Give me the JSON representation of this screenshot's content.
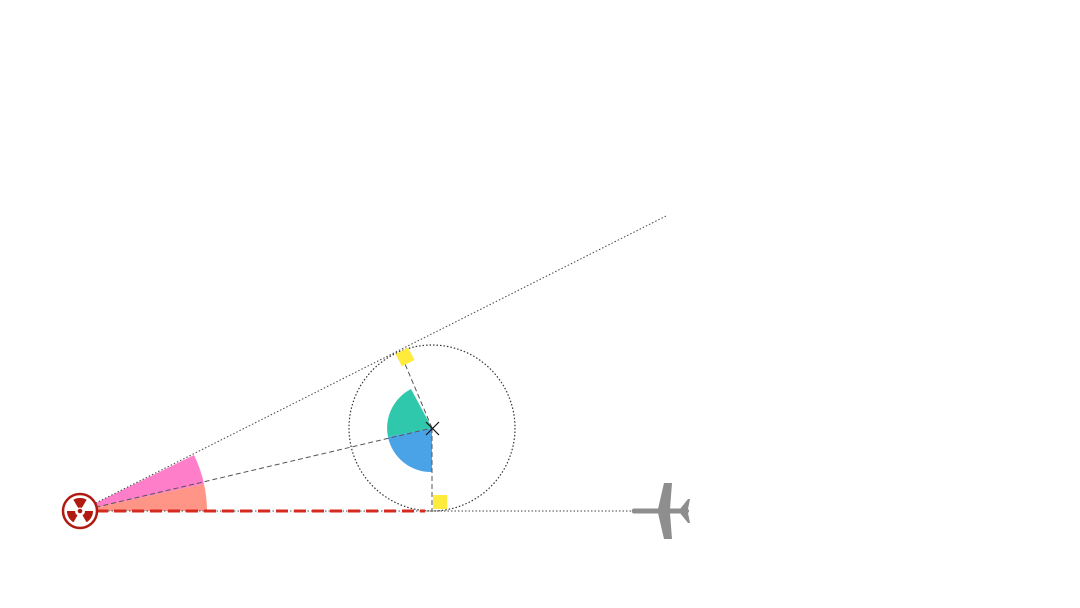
{
  "diagram": {
    "nodes": [
      {
        "id": "source",
        "icon": "radiation-icon"
      },
      {
        "id": "center",
        "icon": "cross-mark-icon"
      },
      {
        "id": "target",
        "icon": "airplane-icon"
      }
    ],
    "markers": [
      "upper-tangent-marker",
      "lower-tangent-marker"
    ],
    "colors": {
      "upper_wedge": "#ff77c6",
      "lower_wedge": "#ff8f80",
      "upper_sector": "#30c8ad",
      "lower_sector": "#4aa3e6",
      "marker": "#ffeb3b",
      "red_dash": "#d42a1f",
      "radiation": "#b11a10",
      "airplane": "#8e8e8e",
      "guide": "#555555"
    }
  }
}
